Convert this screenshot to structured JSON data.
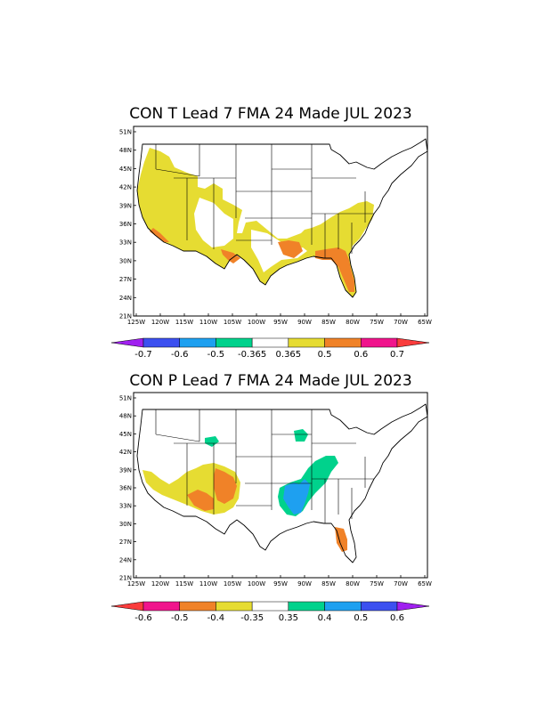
{
  "panels": [
    {
      "title": "CON T Lead 7 FMA 24 Made JUL 2023",
      "lat_labels": [
        "51N",
        "48N",
        "45N",
        "42N",
        "39N",
        "36N",
        "33N",
        "30N",
        "27N",
        "24N",
        "21N"
      ],
      "lon_labels": [
        "125W",
        "120W",
        "115W",
        "110W",
        "105W",
        "100W",
        "95W",
        "90W",
        "85W",
        "80W",
        "75W",
        "70W",
        "65W"
      ],
      "colorbar": {
        "labels": [
          "-0.7",
          "-0.6",
          "-0.5",
          "-0.365",
          "0.365",
          "0.5",
          "0.6",
          "0.7"
        ],
        "colors": [
          "#a020f0",
          "#3c50f0",
          "#1ea0f0",
          "#00d28c",
          "#ffffff",
          "#e6dc32",
          "#f08228",
          "#f0148c",
          "#fa3c3c"
        ]
      }
    },
    {
      "title": "CON P  Lead 7 FMA 24 Made JUL 2023",
      "lat_labels": [
        "51N",
        "48N",
        "45N",
        "42N",
        "39N",
        "36N",
        "33N",
        "30N",
        "27N",
        "24N",
        "21N"
      ],
      "lon_labels": [
        "125W",
        "120W",
        "115W",
        "110W",
        "105W",
        "100W",
        "95W",
        "90W",
        "85W",
        "80W",
        "75W",
        "70W",
        "65W"
      ],
      "colorbar": {
        "labels": [
          "-0.6",
          "-0.5",
          "-0.4",
          "-0.35",
          "0.35",
          "0.4",
          "0.5",
          "0.6"
        ],
        "colors": [
          "#fa3c3c",
          "#f0148c",
          "#f08228",
          "#e6dc32",
          "#ffffff",
          "#00d28c",
          "#1ea0f0",
          "#3c50f0",
          "#a020f0"
        ]
      }
    }
  ]
}
